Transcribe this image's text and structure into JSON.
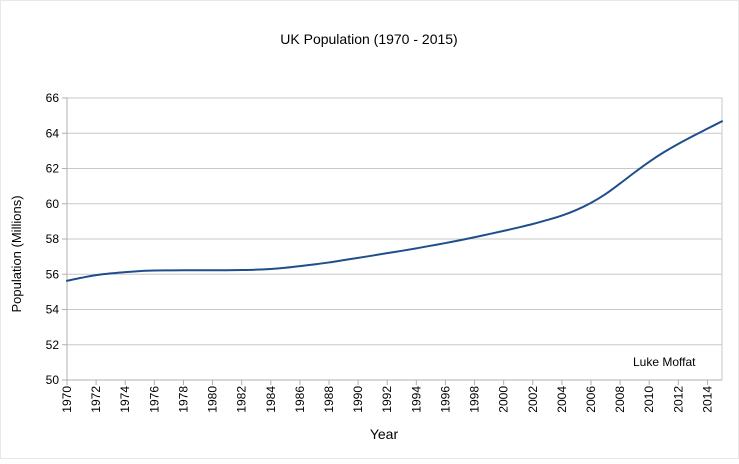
{
  "chart_data": {
    "type": "line",
    "title": "UK Population (1970 - 2015)",
    "xlabel": "Year",
    "ylabel": "Population (Millions)",
    "annotation": "Luke Moffat",
    "xlim": [
      1970,
      2015
    ],
    "ylim": [
      50,
      66
    ],
    "y_ticks": [
      50,
      52,
      54,
      56,
      58,
      60,
      62,
      64,
      66
    ],
    "x_ticks": [
      1970,
      1972,
      1974,
      1976,
      1978,
      1980,
      1982,
      1984,
      1986,
      1988,
      1990,
      1992,
      1994,
      1996,
      1998,
      2000,
      2002,
      2004,
      2006,
      2008,
      2010,
      2012,
      2014
    ],
    "grid": "horizontal",
    "legend": "none",
    "line_color": "#1f4e8c",
    "series": [
      {
        "x": [
          1970,
          1971,
          1972,
          1973,
          1974,
          1975,
          1976,
          1977,
          1978,
          1979,
          1980,
          1981,
          1982,
          1983,
          1984,
          1985,
          1986,
          1987,
          1988,
          1989,
          1990,
          1991,
          1992,
          1993,
          1994,
          1995,
          1996,
          1997,
          1998,
          1999,
          2000,
          2001,
          2002,
          2003,
          2004,
          2005,
          2006,
          2007,
          2008,
          2009,
          2010,
          2011,
          2012,
          2013,
          2014,
          2015
        ],
        "values": [
          55.63,
          55.8,
          55.95,
          56.05,
          56.12,
          56.18,
          56.21,
          56.22,
          56.23,
          56.23,
          56.23,
          56.23,
          56.24,
          56.26,
          56.3,
          56.37,
          56.46,
          56.56,
          56.67,
          56.8,
          56.93,
          57.06,
          57.2,
          57.33,
          57.47,
          57.62,
          57.77,
          57.93,
          58.1,
          58.28,
          58.46,
          58.65,
          58.85,
          59.08,
          59.33,
          59.65,
          60.05,
          60.55,
          61.15,
          61.78,
          62.38,
          62.92,
          63.4,
          63.84,
          64.26,
          64.68
        ]
      }
    ]
  }
}
